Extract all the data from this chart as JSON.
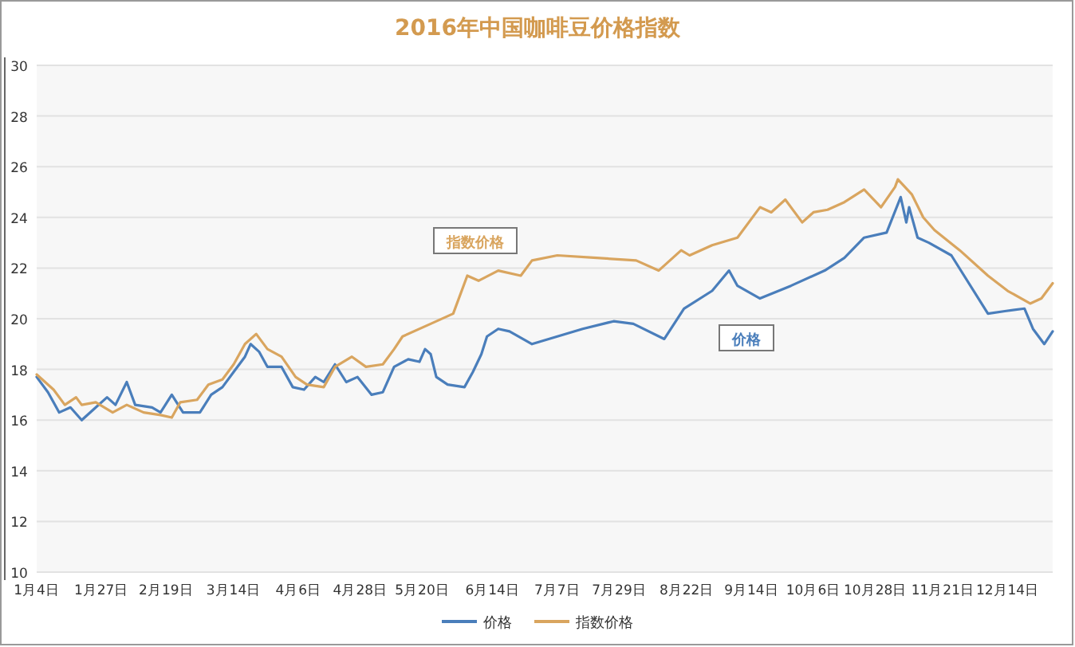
{
  "chart_data": {
    "type": "line",
    "title": "2016年中国咖啡豆价格指数",
    "xlim": [
      "2016-01-04",
      "2016-12-30"
    ],
    "xticks": [
      {
        "value": "2016-01-04",
        "label": "1月4日"
      },
      {
        "value": "2016-01-27",
        "label": "1月27日"
      },
      {
        "value": "2016-02-19",
        "label": "2月19日"
      },
      {
        "value": "2016-03-14",
        "label": "3月14日"
      },
      {
        "value": "2016-04-06",
        "label": "4月6日"
      },
      {
        "value": "2016-04-28",
        "label": "4月28日"
      },
      {
        "value": "2016-05-20",
        "label": "5月20日"
      },
      {
        "value": "2016-06-14",
        "label": "6月14日"
      },
      {
        "value": "2016-07-07",
        "label": "7月7日"
      },
      {
        "value": "2016-07-29",
        "label": "7月29日"
      },
      {
        "value": "2016-08-22",
        "label": "8月22日"
      },
      {
        "value": "2016-09-14",
        "label": "9月14日"
      },
      {
        "value": "2016-10-06",
        "label": "10月6日"
      },
      {
        "value": "2016-10-28",
        "label": "10月28日"
      },
      {
        "value": "2016-11-21",
        "label": "11月21日"
      },
      {
        "value": "2016-12-14",
        "label": "12月14日"
      }
    ],
    "ylim": [
      10,
      30
    ],
    "yticks": [
      10,
      12,
      14,
      16,
      18,
      20,
      22,
      24,
      26,
      28,
      30
    ],
    "grid": "y",
    "legend": "bottom",
    "marker": "none",
    "line_style": "solid",
    "annotations": [
      "指数价格",
      "价格"
    ],
    "series": [
      {
        "name": "价格",
        "color": "#4a7ebb",
        "x": [
          "2016-01-04",
          "2016-01-08",
          "2016-01-12",
          "2016-01-16",
          "2016-01-20",
          "2016-01-24",
          "2016-01-29",
          "2016-02-01",
          "2016-02-05",
          "2016-02-08",
          "2016-02-14",
          "2016-02-17",
          "2016-02-21",
          "2016-02-25",
          "2016-03-02",
          "2016-03-06",
          "2016-03-10",
          "2016-03-14",
          "2016-03-18",
          "2016-03-20",
          "2016-03-23",
          "2016-03-26",
          "2016-03-31",
          "2016-04-04",
          "2016-04-08",
          "2016-04-12",
          "2016-04-15",
          "2016-04-19",
          "2016-04-23",
          "2016-04-27",
          "2016-05-02",
          "2016-05-06",
          "2016-05-10",
          "2016-05-15",
          "2016-05-19",
          "2016-05-21",
          "2016-05-23",
          "2016-05-25",
          "2016-05-29",
          "2016-06-04",
          "2016-06-07",
          "2016-06-10",
          "2016-06-12",
          "2016-06-16",
          "2016-06-20",
          "2016-06-28",
          "2016-07-16",
          "2016-07-27",
          "2016-08-03",
          "2016-08-14",
          "2016-08-21",
          "2016-08-31",
          "2016-09-06",
          "2016-09-09",
          "2016-09-17",
          "2016-09-28",
          "2016-10-10",
          "2016-10-17",
          "2016-10-24",
          "2016-11-01",
          "2016-11-06",
          "2016-11-08",
          "2016-11-09",
          "2016-11-12",
          "2016-11-16",
          "2016-11-24",
          "2016-12-07",
          "2016-12-13",
          "2016-12-20",
          "2016-12-23",
          "2016-12-27",
          "2016-12-30"
        ],
        "values": [
          17.7,
          17.1,
          16.3,
          16.5,
          16.0,
          16.4,
          16.9,
          16.6,
          17.5,
          16.6,
          16.5,
          16.3,
          17.0,
          16.3,
          16.3,
          17.0,
          17.3,
          17.9,
          18.5,
          19.0,
          18.7,
          18.1,
          18.1,
          17.3,
          17.2,
          17.7,
          17.5,
          18.2,
          17.5,
          17.7,
          17.0,
          17.1,
          18.1,
          18.4,
          18.3,
          18.8,
          18.6,
          17.7,
          17.4,
          17.3,
          17.9,
          18.6,
          19.3,
          19.6,
          19.5,
          19.0,
          19.6,
          19.9,
          19.8,
          19.2,
          20.4,
          21.1,
          21.9,
          21.3,
          20.8,
          21.3,
          21.9,
          22.4,
          23.2,
          23.4,
          24.8,
          23.8,
          24.4,
          23.2,
          23.0,
          22.5,
          20.2,
          20.3,
          20.4,
          19.6,
          19.0,
          19.5
        ]
      },
      {
        "name": "指数价格",
        "color": "#d9a55f",
        "x": [
          "2016-01-04",
          "2016-01-10",
          "2016-01-14",
          "2016-01-18",
          "2016-01-20",
          "2016-01-25",
          "2016-01-31",
          "2016-02-05",
          "2016-02-11",
          "2016-02-17",
          "2016-02-21",
          "2016-02-24",
          "2016-03-01",
          "2016-03-05",
          "2016-03-10",
          "2016-03-14",
          "2016-03-18",
          "2016-03-22",
          "2016-03-26",
          "2016-03-31",
          "2016-04-05",
          "2016-04-09",
          "2016-04-15",
          "2016-04-19",
          "2016-04-25",
          "2016-04-30",
          "2016-05-06",
          "2016-05-10",
          "2016-05-13",
          "2016-05-23",
          "2016-05-31",
          "2016-06-05",
          "2016-06-09",
          "2016-06-16",
          "2016-06-24",
          "2016-06-28",
          "2016-07-07",
          "2016-07-21",
          "2016-08-04",
          "2016-08-12",
          "2016-08-20",
          "2016-08-23",
          "2016-08-31",
          "2016-09-09",
          "2016-09-17",
          "2016-09-21",
          "2016-09-26",
          "2016-10-02",
          "2016-10-06",
          "2016-10-11",
          "2016-10-17",
          "2016-10-24",
          "2016-10-30",
          "2016-11-04",
          "2016-11-05",
          "2016-11-10",
          "2016-11-14",
          "2016-11-18",
          "2016-11-27",
          "2016-12-07",
          "2016-12-14",
          "2016-12-22",
          "2016-12-26",
          "2016-12-30"
        ],
        "values": [
          17.8,
          17.2,
          16.6,
          16.9,
          16.6,
          16.7,
          16.3,
          16.6,
          16.3,
          16.2,
          16.1,
          16.7,
          16.8,
          17.4,
          17.6,
          18.2,
          19.0,
          19.4,
          18.8,
          18.5,
          17.7,
          17.4,
          17.3,
          18.1,
          18.5,
          18.1,
          18.2,
          18.8,
          19.3,
          19.8,
          20.2,
          21.7,
          21.5,
          21.9,
          21.7,
          22.3,
          22.5,
          22.4,
          22.3,
          21.9,
          22.7,
          22.5,
          22.9,
          23.2,
          24.4,
          24.2,
          24.7,
          23.8,
          24.2,
          24.3,
          24.6,
          25.1,
          24.4,
          25.2,
          25.5,
          24.9,
          24.0,
          23.5,
          22.7,
          21.7,
          21.1,
          20.6,
          20.8,
          21.4
        ]
      }
    ]
  }
}
